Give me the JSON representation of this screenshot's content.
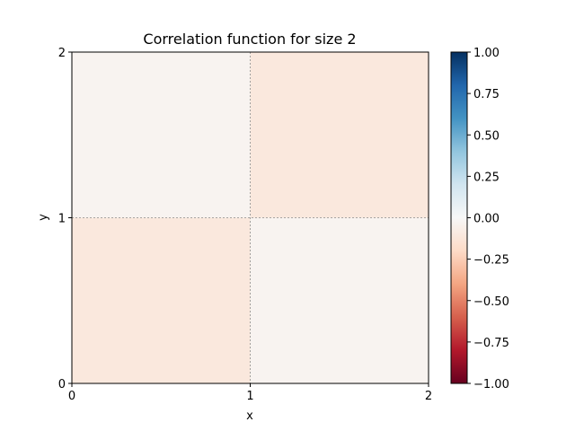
{
  "chart_data": {
    "type": "heatmap",
    "title": "Correlation function for size 2",
    "xlabel": "x",
    "ylabel": "y",
    "xlim": [
      0,
      2
    ],
    "ylim": [
      0,
      2
    ],
    "x_ticks": [
      "0",
      "1",
      "2"
    ],
    "y_ticks": [
      "0",
      "1",
      "2"
    ],
    "grid": true,
    "cmap": "RdBu",
    "vmin": -1.0,
    "vmax": 1.0,
    "cells": [
      {
        "x": [
          0,
          1
        ],
        "y": [
          1,
          2
        ],
        "value": -0.03
      },
      {
        "x": [
          1,
          2
        ],
        "y": [
          1,
          2
        ],
        "value": -0.11
      },
      {
        "x": [
          0,
          1
        ],
        "y": [
          0,
          1
        ],
        "value": -0.11
      },
      {
        "x": [
          1,
          2
        ],
        "y": [
          0,
          1
        ],
        "value": -0.03
      }
    ],
    "colorbar": {
      "ticks": [
        1.0,
        0.75,
        0.5,
        0.25,
        0.0,
        -0.25,
        -0.5,
        -0.75,
        -1.0
      ],
      "tick_labels": [
        "1.00",
        "0.75",
        "0.50",
        "0.25",
        "0.00",
        "−0.25",
        "−0.50",
        "−0.75",
        "−1.00"
      ]
    }
  },
  "colors": {
    "cell_low": "#f7efeb",
    "cell_high": "#f8e5da",
    "colormap_stops": [
      "#67001f",
      "#b2182b",
      "#d6604d",
      "#f4a582",
      "#fddbc7",
      "#f7f7f7",
      "#d1e5f0",
      "#92c5de",
      "#4393c3",
      "#2166ac",
      "#053061"
    ]
  }
}
